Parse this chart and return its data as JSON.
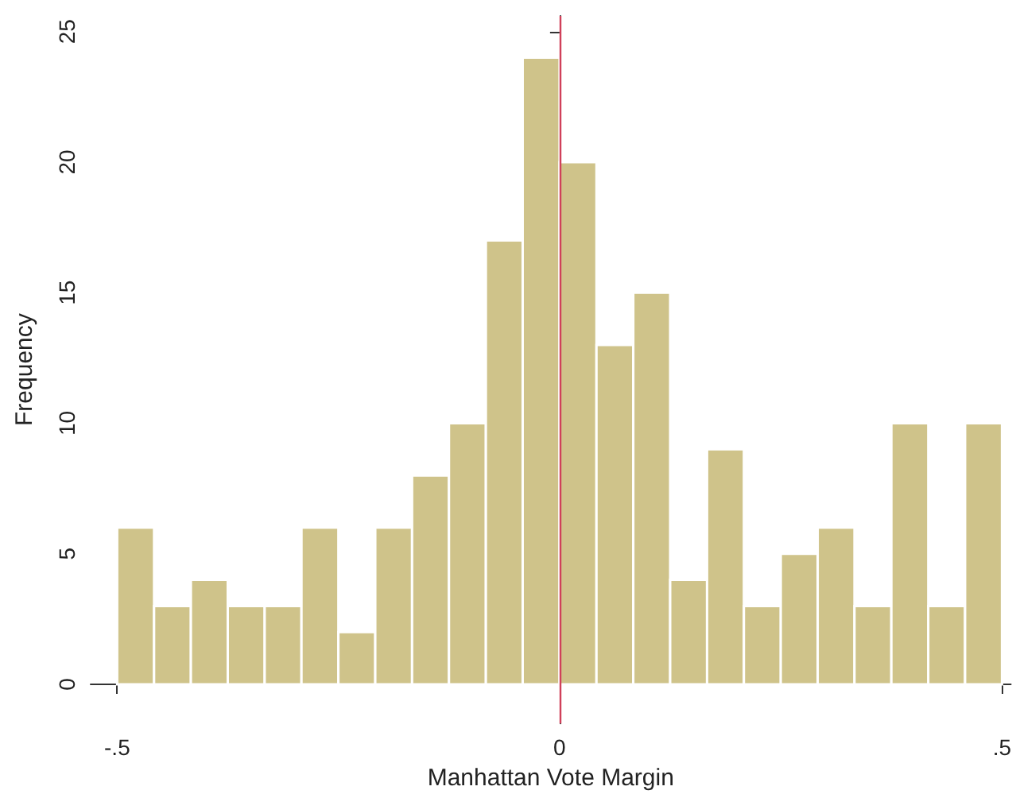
{
  "chart_data": {
    "type": "histogram",
    "xlabel": "Manhattan Vote Margin",
    "ylabel": "Frequency",
    "bins": [
      -0.5,
      -0.4583,
      -0.4167,
      -0.375,
      -0.3333,
      -0.2917,
      -0.25,
      -0.2083,
      -0.1667,
      -0.125,
      -0.0833,
      -0.0417,
      0,
      0.0417,
      0.0833,
      0.125,
      0.1667,
      0.2083,
      0.25,
      0.2917,
      0.3333,
      0.375,
      0.4167,
      0.4583,
      0.5
    ],
    "values": [
      6,
      3,
      4,
      3,
      3,
      6,
      2,
      6,
      8,
      10,
      17,
      24,
      20,
      13,
      15,
      4,
      9,
      3,
      5,
      6,
      3,
      10,
      3,
      10
    ],
    "color": "#cfc38a",
    "xlim": [
      -0.53,
      0.51
    ],
    "xticks": [
      {
        "value": -0.5,
        "label": "-.5"
      },
      0,
      {
        "value": 0.5,
        "label": ".5"
      }
    ],
    "ylim": [
      -1.5,
      25.6
    ],
    "yticks": [
      0,
      5,
      10,
      15,
      20,
      25
    ],
    "ref_lines": [
      {
        "axis": "x",
        "value": 0,
        "label": null,
        "color": "#d0405a"
      }
    ],
    "grid": false
  }
}
